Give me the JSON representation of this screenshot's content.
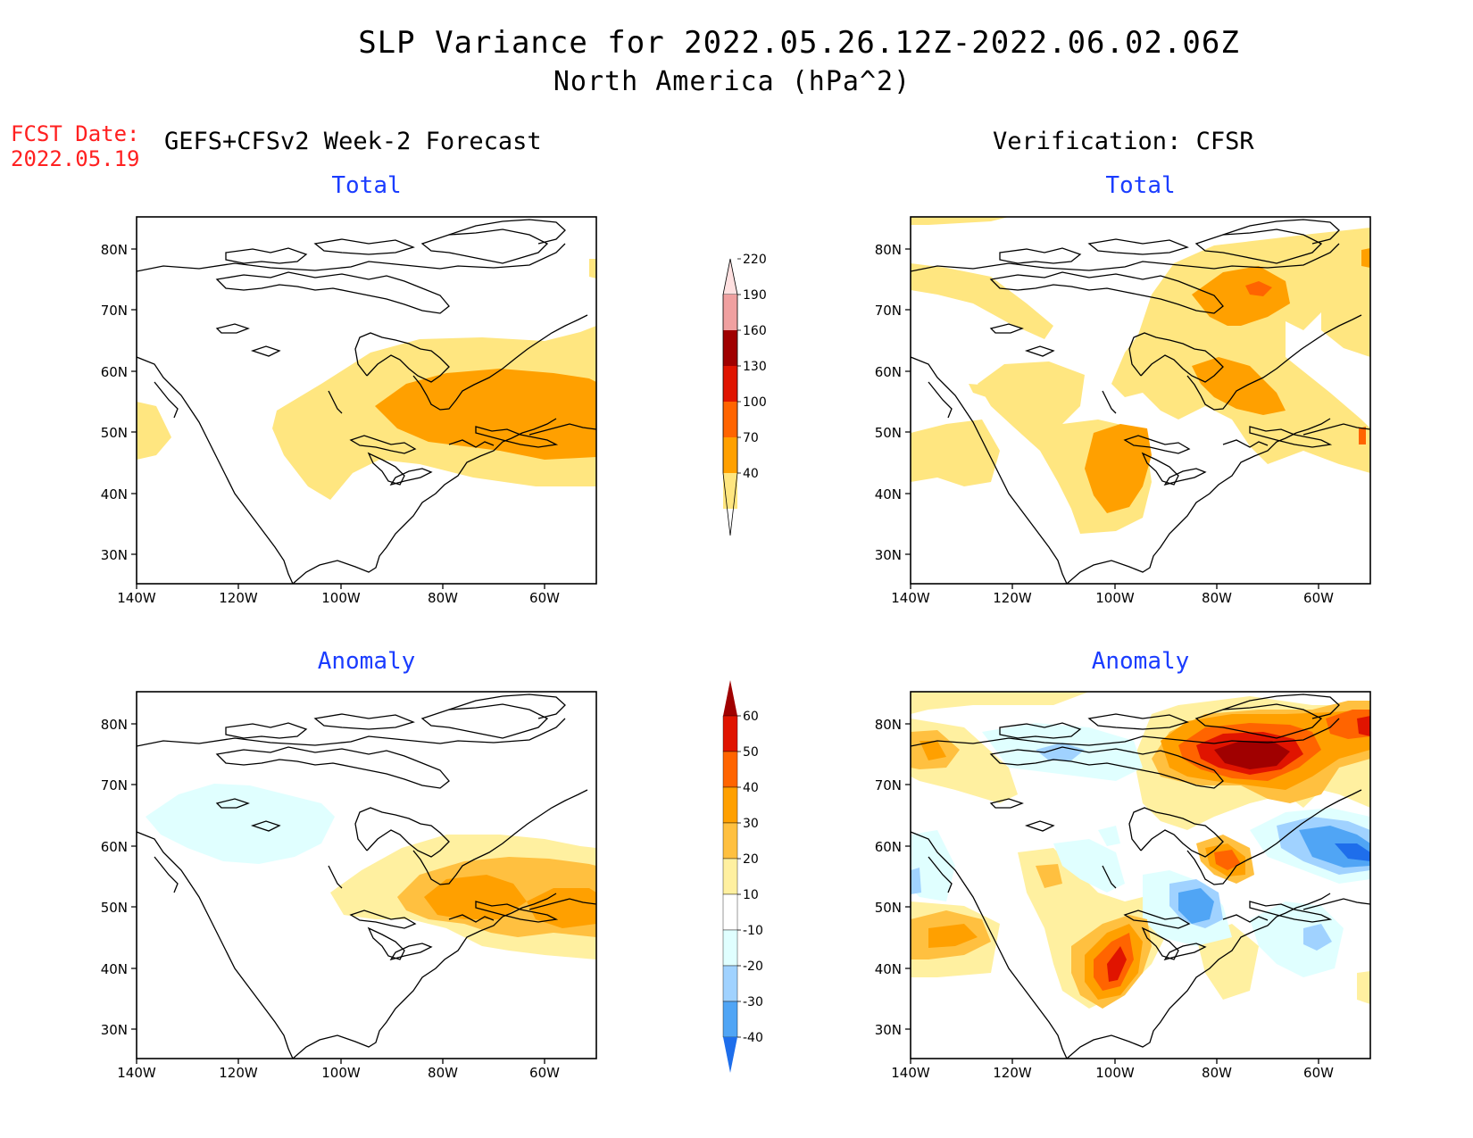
{
  "title": "SLP Variance for 2022.05.26.12Z-2022.06.02.06Z",
  "subtitle": "North America (hPa^2)",
  "fcst_label": "FCST Date:",
  "fcst_date": "2022.05.19",
  "left_header": "GEFS+CFSv2 Week-2 Forecast",
  "right_header": "Verification: CFSR",
  "panels": {
    "fc_total_title": "Total",
    "vf_total_title": "Total",
    "fc_anom_title": "Anomaly",
    "vf_anom_title": "Anomaly"
  },
  "axes": {
    "lat_labels": [
      "80N",
      "70N",
      "60N",
      "50N",
      "40N",
      "30N"
    ],
    "lon_labels": [
      "140W",
      "120W",
      "100W",
      "80W",
      "60W"
    ]
  },
  "colorbars": {
    "total": {
      "levels": [
        "40",
        "70",
        "100",
        "130",
        "160",
        "190",
        "220"
      ],
      "colors": [
        "#ffe680",
        "#ffa000",
        "#ff6400",
        "#e01400",
        "#a00000",
        "#f0a0a0",
        "#ffe0e0"
      ]
    },
    "anomaly": {
      "levels": [
        "60",
        "50",
        "40",
        "30",
        "20",
        "10",
        "-10",
        "-20",
        "-30",
        "-40"
      ],
      "colors": [
        "#a00000",
        "#e01400",
        "#ff6400",
        "#ffa000",
        "#ffc040",
        "#fff0a0",
        "#ffffff",
        "#e0ffff",
        "#a0d2ff",
        "#50a5f5",
        "#1e6eeb"
      ]
    }
  }
}
